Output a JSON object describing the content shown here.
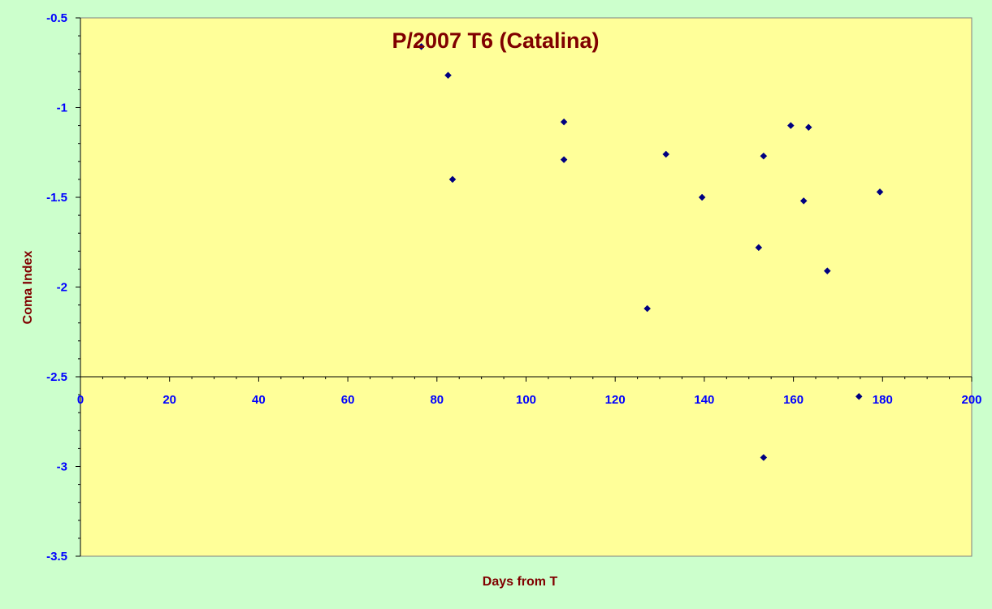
{
  "chart_data": {
    "type": "scatter",
    "title": "P/2007 T6 (Catalina)",
    "xlabel": "Days from T",
    "ylabel": "Coma Index",
    "xlim": [
      0,
      200
    ],
    "ylim": [
      -3.5,
      -0.5
    ],
    "x_axis_crosses_y_at": -2.5,
    "x_major_ticks": [
      0,
      20,
      40,
      60,
      80,
      100,
      120,
      140,
      160,
      180,
      200
    ],
    "x_tick_labels": [
      "0",
      "20",
      "40",
      "60",
      "80",
      "100",
      "120",
      "140",
      "160",
      "180",
      "200"
    ],
    "y_major_ticks": [
      -0.5,
      -1,
      -1.5,
      -2,
      -2.5,
      -3,
      -3.5
    ],
    "y_tick_labels": [
      "-0.5",
      "-1",
      "-1.5",
      "-2",
      "-2.5",
      "-3",
      "-3.5"
    ],
    "grid": false,
    "legend": "none",
    "points": [
      {
        "x": 76.5,
        "y": -0.66
      },
      {
        "x": 82.5,
        "y": -0.82
      },
      {
        "x": 83.5,
        "y": -1.4
      },
      {
        "x": 108.5,
        "y": -1.08
      },
      {
        "x": 108.5,
        "y": -1.29
      },
      {
        "x": 127.2,
        "y": -2.12
      },
      {
        "x": 131.4,
        "y": -1.26
      },
      {
        "x": 139.5,
        "y": -1.5
      },
      {
        "x": 152.2,
        "y": -1.78
      },
      {
        "x": 153.3,
        "y": -1.27
      },
      {
        "x": 153.3,
        "y": -2.95
      },
      {
        "x": 159.4,
        "y": -1.1
      },
      {
        "x": 162.3,
        "y": -1.52
      },
      {
        "x": 163.4,
        "y": -1.11
      },
      {
        "x": 167.6,
        "y": -1.91
      },
      {
        "x": 174.7,
        "y": -2.61
      },
      {
        "x": 179.4,
        "y": -1.47
      }
    ]
  },
  "colors": {
    "outer_background": "#ccffcc",
    "plot_background": "#ffff99",
    "tick_label_color": "#0000ff",
    "title_color": "#800000",
    "marker_color": "#000080",
    "axis_color": "#000000"
  }
}
